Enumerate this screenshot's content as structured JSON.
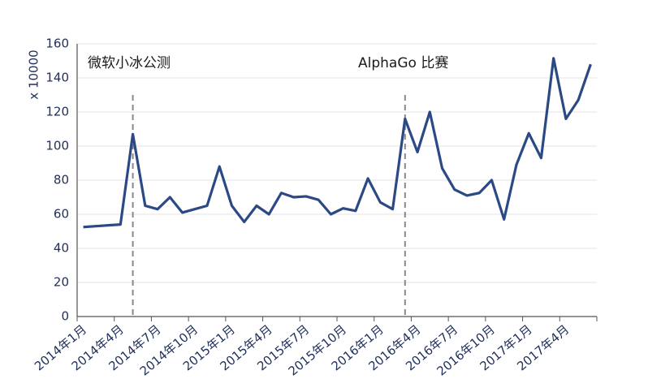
{
  "chart_data": {
    "type": "line",
    "y_label": "x 10000",
    "categories": [
      "2014年1月",
      null,
      null,
      "2014年4月",
      null,
      null,
      "2014年7月",
      null,
      null,
      "2014年10月",
      null,
      null,
      "2015年1月",
      null,
      null,
      "2015年4月",
      null,
      null,
      "2015年7月",
      null,
      null,
      "2015年10月",
      null,
      null,
      "2016年1月",
      null,
      null,
      "2016年4月",
      null,
      null,
      "2016年7月",
      null,
      null,
      "2016年10月",
      null,
      null,
      "2017年1月",
      null,
      null,
      "2017年4月",
      null,
      null
    ],
    "series": [
      {
        "color": "#2b4a85",
        "values": [
          52.5,
          53,
          53.5,
          54,
          107,
          65,
          63,
          70,
          61,
          63,
          65,
          88,
          65,
          55.5,
          65,
          60,
          72.5,
          70,
          70.5,
          68.5,
          60,
          63.5,
          62,
          81,
          67,
          63,
          116,
          96.5,
          120,
          87,
          74.5,
          71,
          72.5,
          80,
          57,
          89,
          107.5,
          93,
          151.5,
          116,
          127,
          148
        ]
      }
    ],
    "ylim": [
      0,
      160
    ],
    "yticks": [
      0,
      20,
      40,
      60,
      80,
      100,
      120,
      140,
      160
    ],
    "grid": true,
    "annotations": [
      {
        "text": "微软小冰公测"
      },
      {
        "text": "AlphaGo 比赛"
      }
    ]
  }
}
